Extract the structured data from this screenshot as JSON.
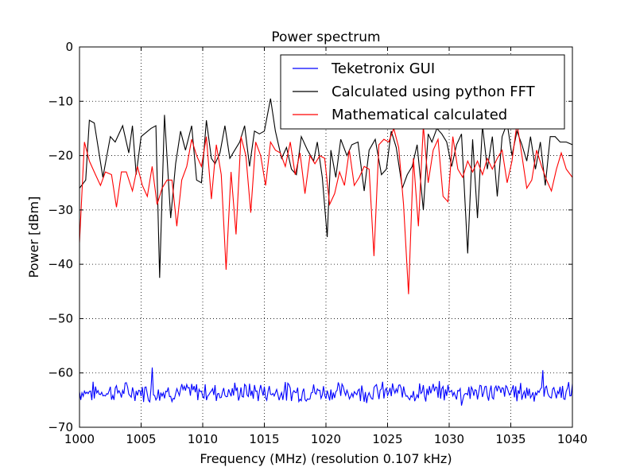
{
  "chart_data": {
    "type": "line",
    "title": "Power spectrum",
    "xlabel": "Frequency (MHz) (resolution 0.107 kHz)",
    "ylabel": "Power  [dBm]",
    "xlim": [
      1000,
      1040
    ],
    "ylim": [
      -70,
      0
    ],
    "xticks": [
      1000,
      1005,
      1010,
      1015,
      1020,
      1025,
      1030,
      1035,
      1040
    ],
    "yticks": [
      0,
      -10,
      -20,
      -30,
      -40,
      -50,
      -60,
      -70
    ],
    "xtick_labels": [
      "1000",
      "1005",
      "1010",
      "1015",
      "1020",
      "1025",
      "1030",
      "1035",
      "1040"
    ],
    "ytick_labels": [
      "0",
      "−10",
      "−20",
      "−30",
      "−40",
      "−50",
      "−60",
      "−70"
    ],
    "grid": true,
    "legend_position": "top-right",
    "colors": {
      "blue": "#0000ff",
      "black": "#000000",
      "red": "#ff0000"
    },
    "series": [
      {
        "name": "Teketronix GUI",
        "color": "#0000ff",
        "baseline": -63.5,
        "x": [
          1000.0,
          1005.9,
          1037.6,
          1031.0
        ],
        "y": [
          -63.5,
          -59.0,
          -59.5,
          -66.0
        ]
      },
      {
        "name": "Calculated using python FFT",
        "color": "#000000",
        "x": [
          1000.0,
          1000.5,
          1000.8,
          1001.2,
          1001.9,
          1002.5,
          1002.9,
          1003.5,
          1004.0,
          1004.3,
          1004.6,
          1005.0,
          1005.8,
          1006.2,
          1006.5,
          1006.9,
          1007.4,
          1007.8,
          1008.2,
          1008.6,
          1009.1,
          1009.5,
          1009.9,
          1010.3,
          1010.7,
          1011.0,
          1011.4,
          1011.8,
          1012.2,
          1012.6,
          1013.0,
          1013.4,
          1013.8,
          1014.2,
          1014.6,
          1015.0,
          1015.5,
          1015.9,
          1016.4,
          1016.8,
          1017.2,
          1017.6,
          1018.0,
          1018.5,
          1019.0,
          1019.3,
          1019.7,
          1020.1,
          1020.4,
          1020.8,
          1021.2,
          1021.7,
          1022.1,
          1022.6,
          1023.1,
          1023.5,
          1024.0,
          1024.5,
          1024.9,
          1025.3,
          1025.7,
          1026.2,
          1026.6,
          1027.0,
          1027.4,
          1027.9,
          1028.3,
          1028.6,
          1029.0,
          1029.4,
          1029.8,
          1030.2,
          1030.6,
          1031.0,
          1031.5,
          1031.9,
          1032.3,
          1032.7,
          1033.1,
          1033.5,
          1033.9,
          1034.3,
          1034.7,
          1035.1,
          1035.5,
          1035.9,
          1036.3,
          1036.6,
          1037.0,
          1037.4,
          1037.8,
          1038.2,
          1038.6,
          1039.0,
          1039.5,
          1040.0
        ],
        "y": [
          -26.0,
          -24.5,
          -13.5,
          -14.0,
          -24.0,
          -16.5,
          -17.5,
          -14.5,
          -19.5,
          -14.5,
          -23.5,
          -16.5,
          -15.0,
          -14.5,
          -42.5,
          -12.5,
          -31.5,
          -21.5,
          -15.5,
          -19.0,
          -14.5,
          -24.5,
          -25.0,
          -13.5,
          -20.5,
          -21.5,
          -19.5,
          -14.5,
          -20.5,
          -19.0,
          -17.5,
          -14.5,
          -22.0,
          -15.5,
          -16.0,
          -15.5,
          -9.5,
          -15.5,
          -20.5,
          -18.5,
          -22.5,
          -23.5,
          -16.5,
          -19.0,
          -21.0,
          -17.5,
          -24.0,
          -35.0,
          -19.0,
          -24.0,
          -17.0,
          -20.0,
          -18.0,
          -17.5,
          -26.5,
          -19.0,
          -17.0,
          -23.5,
          -22.5,
          -15.5,
          -18.5,
          -26.0,
          -23.5,
          -22.0,
          -18.0,
          -30.0,
          -16.0,
          -17.5,
          -15.0,
          -16.0,
          -17.5,
          -22.0,
          -18.0,
          -16.0,
          -38.0,
          -17.0,
          -31.5,
          -14.5,
          -22.5,
          -16.5,
          -27.5,
          -16.5,
          -14.0,
          -20.0,
          -15.5,
          -18.0,
          -21.0,
          -16.5,
          -22.5,
          -17.5,
          -25.5,
          -16.5,
          -16.5,
          -17.5,
          -17.5,
          -18.0
        ]
      },
      {
        "name": "Mathematical calculated",
        "color": "#ff0000",
        "x": [
          1000.0,
          1000.4,
          1000.8,
          1001.3,
          1001.7,
          1002.1,
          1002.6,
          1003.0,
          1003.4,
          1003.8,
          1004.3,
          1004.7,
          1005.1,
          1005.5,
          1005.9,
          1006.3,
          1006.7,
          1007.1,
          1007.5,
          1007.9,
          1008.3,
          1008.7,
          1009.1,
          1009.5,
          1009.9,
          1010.3,
          1010.7,
          1011.1,
          1011.5,
          1011.9,
          1012.3,
          1012.7,
          1013.1,
          1013.5,
          1013.9,
          1014.3,
          1014.7,
          1015.1,
          1015.5,
          1015.9,
          1016.3,
          1016.7,
          1017.1,
          1017.5,
          1017.9,
          1018.3,
          1018.7,
          1019.1,
          1019.5,
          1019.9,
          1020.3,
          1020.7,
          1021.1,
          1021.5,
          1021.9,
          1022.3,
          1022.7,
          1023.1,
          1023.5,
          1023.9,
          1024.3,
          1024.7,
          1025.1,
          1025.5,
          1025.9,
          1026.3,
          1026.7,
          1027.1,
          1027.5,
          1027.9,
          1028.3,
          1028.7,
          1029.1,
          1029.5,
          1029.9,
          1030.3,
          1030.7,
          1031.1,
          1031.5,
          1031.9,
          1032.3,
          1032.7,
          1033.1,
          1033.5,
          1033.9,
          1034.3,
          1034.7,
          1035.1,
          1035.5,
          1035.9,
          1036.3,
          1036.7,
          1037.1,
          1037.5,
          1037.9,
          1038.3,
          1038.7,
          1039.1,
          1039.5,
          1040.0
        ],
        "y": [
          -36.0,
          -17.5,
          -21.0,
          -23.5,
          -25.5,
          -23.0,
          -23.5,
          -29.5,
          -23.0,
          -23.0,
          -26.5,
          -22.0,
          -25.5,
          -27.5,
          -22.0,
          -29.0,
          -26.0,
          -24.5,
          -24.5,
          -33.0,
          -24.5,
          -22.0,
          -17.0,
          -20.0,
          -22.0,
          -16.5,
          -28.0,
          -18.0,
          -23.5,
          -41.0,
          -23.0,
          -34.5,
          -16.5,
          -20.0,
          -30.5,
          -17.5,
          -20.0,
          -25.5,
          -17.5,
          -19.0,
          -19.5,
          -22.0,
          -17.5,
          -23.5,
          -19.5,
          -27.0,
          -20.0,
          -21.5,
          -20.0,
          -20.5,
          -29.0,
          -27.0,
          -23.0,
          -25.5,
          -19.0,
          -25.5,
          -24.0,
          -22.0,
          -22.5,
          -38.5,
          -18.0,
          -17.0,
          -17.5,
          -15.0,
          -18.5,
          -29.0,
          -45.5,
          -20.5,
          -33.0,
          -14.5,
          -25.0,
          -19.0,
          -17.0,
          -27.5,
          -28.5,
          -16.5,
          -22.5,
          -24.0,
          -21.0,
          -23.0,
          -21.0,
          -23.5,
          -20.5,
          -22.5,
          -20.5,
          -19.0,
          -25.0,
          -21.0,
          -14.0,
          -20.0,
          -26.0,
          -24.5,
          -19.0,
          -22.0,
          -24.5,
          -26.5,
          -22.5,
          -19.5,
          -22.5,
          -24.0
        ]
      }
    ]
  }
}
